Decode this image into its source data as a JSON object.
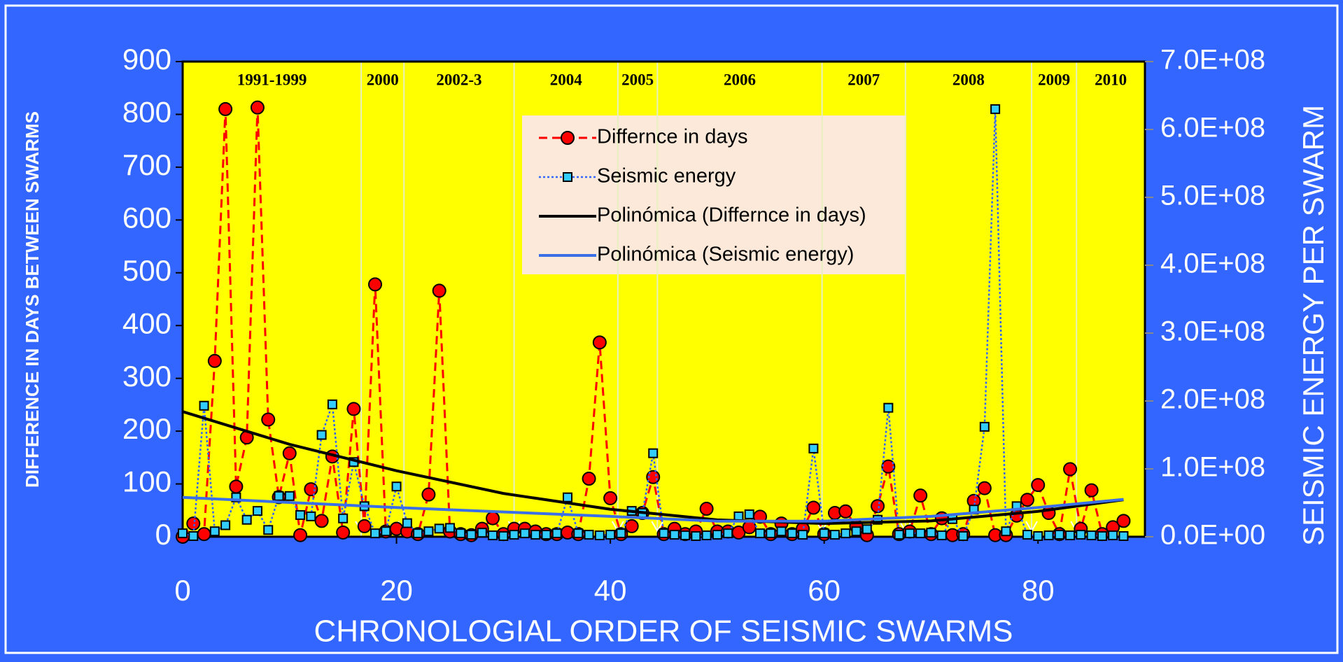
{
  "chart_data": {
    "type": "line",
    "xlabel": "CHRONOLOGIAL ORDER OF SEISMIC SWARMS",
    "ylabel": "DIFFERENCE IN DAYS BETWEEN SWARMS",
    "y2label": "SEISMIC ENERGY PER SWARM",
    "xlim": [
      0,
      90
    ],
    "xticks": [
      0,
      20,
      40,
      60,
      80
    ],
    "ylim": [
      0,
      900
    ],
    "yticks": [
      0,
      100,
      200,
      300,
      400,
      500,
      600,
      700,
      800,
      900
    ],
    "y2lim": [
      0,
      700000000
    ],
    "y2ticks": [
      {
        "value": 0,
        "label": "0.0E+00"
      },
      {
        "value": 100000000,
        "label": "1.0E+08"
      },
      {
        "value": 200000000,
        "label": "2.0E+08"
      },
      {
        "value": 300000000,
        "label": "3.0E+08"
      },
      {
        "value": 400000000,
        "label": "4.0E+08"
      },
      {
        "value": 500000000,
        "label": "5.0E+08"
      },
      {
        "value": 600000000,
        "label": "6.0E+08"
      },
      {
        "value": 700000000,
        "label": "7.0E+08"
      }
    ],
    "separators": [
      16.7,
      20.7,
      31,
      40.7,
      44.4,
      59.8,
      67.6,
      79.4,
      83.6
    ],
    "annotations": [
      "1991-1999",
      "2000",
      "2002-3",
      "2004",
      "2005",
      "2006",
      "2007",
      "2008",
      "2009",
      "2010"
    ],
    "series": [
      {
        "name": "Differnce in days",
        "color": "#ff0000",
        "marker": "circle",
        "values": [
          0,
          25,
          5,
          333,
          810,
          95,
          188,
          813,
          222,
          75,
          158,
          3,
          90,
          30,
          152,
          8,
          242,
          20,
          478,
          10,
          15,
          10,
          5,
          80,
          466,
          10,
          5,
          3,
          15,
          35,
          5,
          15,
          15,
          10,
          5,
          5,
          8,
          5,
          110,
          368,
          73,
          5,
          20,
          45,
          113,
          5,
          15,
          5,
          10,
          53,
          10,
          10,
          8,
          18,
          38,
          5,
          25,
          5,
          15,
          55,
          5,
          45,
          48,
          20,
          3,
          58,
          133,
          5,
          10,
          78,
          5,
          35,
          3,
          5,
          68,
          92,
          3,
          3,
          40,
          70,
          98,
          45,
          5,
          128,
          15,
          88,
          5,
          18,
          30
        ]
      },
      {
        "name": "Seismic energy",
        "color": "#3366ff",
        "marker": "square",
        "axis": "y2",
        "values": [
          5000000,
          1000000,
          193000000,
          8000000,
          17000000,
          58000000,
          25000000,
          38000000,
          10000000,
          60000000,
          60000000,
          32000000,
          30000000,
          150000000,
          195000000,
          27000000,
          110000000,
          45000000,
          5000000,
          8000000,
          74000000,
          20000000,
          5000000,
          8000000,
          12000000,
          13000000,
          5000000,
          3000000,
          6000000,
          2000000,
          1000000,
          3000000,
          5000000,
          3000000,
          3000000,
          5000000,
          58000000,
          5000000,
          3000000,
          2000000,
          3000000,
          5000000,
          38000000,
          35000000,
          123000000,
          5000000,
          3000000,
          2000000,
          1000000,
          2000000,
          3000000,
          5000000,
          30000000,
          33000000,
          5000000,
          5000000,
          8000000,
          5000000,
          3000000,
          130000000,
          5000000,
          3000000,
          5000000,
          8000000,
          11000000,
          25000000,
          190000000,
          3000000,
          5000000,
          5000000,
          6000000,
          2000000,
          26000000,
          1000000,
          40000000,
          162000000,
          630000000,
          8000000,
          45000000,
          3000000,
          1000000,
          2000000,
          3000000,
          2000000,
          3000000,
          2000000,
          1000000,
          2000000,
          1000000
        ]
      },
      {
        "name": "Polinómica (Differnce in days)",
        "color": "#000000",
        "marker": "none",
        "x": [
          0,
          10,
          20,
          30,
          40,
          50,
          60,
          70,
          80,
          88
        ],
        "values": [
          237,
          175,
          125,
          82,
          52,
          32,
          25,
          30,
          48,
          70
        ]
      },
      {
        "name": "Polinómica (Seismic energy)",
        "color": "#3a6fe8",
        "marker": "none",
        "axis": "y2",
        "x": [
          0,
          20,
          40,
          50,
          60,
          70,
          80,
          88
        ],
        "values": [
          58000000,
          43000000,
          30000000,
          23000000,
          23000000,
          30000000,
          43000000,
          55000000
        ]
      }
    ]
  }
}
